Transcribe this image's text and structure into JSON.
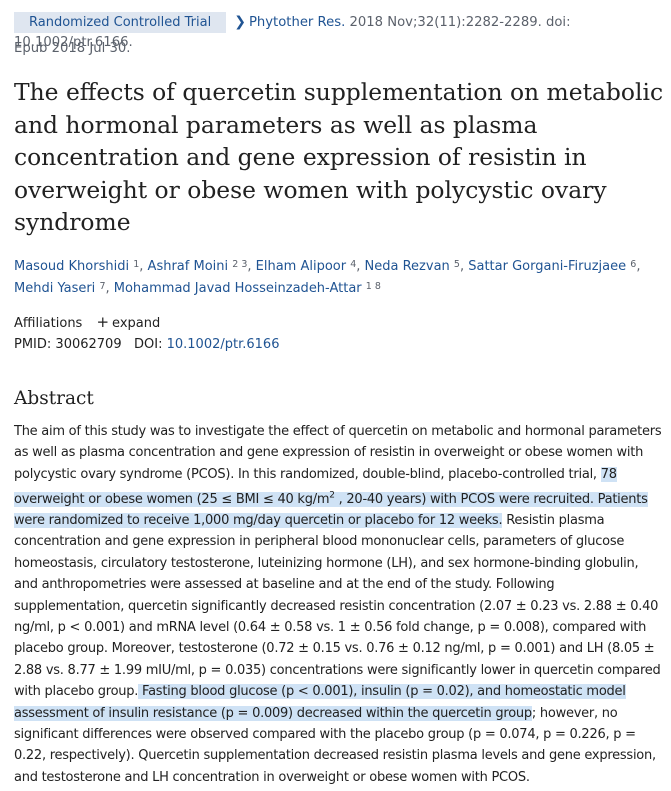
{
  "header": {
    "badge": "Randomized Controlled Trial",
    "chevron_icon": "chevron-right-icon",
    "journal": "Phytother Res.",
    "citation_rest": " 2018 Nov;32(11):2282-2289. doi: 10.1002/ptr.6166.",
    "epub": "Epub 2018 Jul 30."
  },
  "title": "The effects of quercetin supplementation on metabolic and hormonal parameters as well as plasma concentration and gene expression of resistin in overweight or obese women with polycystic ovary syndrome",
  "authors": [
    {
      "name": "Masoud Khorshidi",
      "sup": "1"
    },
    {
      "name": "Ashraf Moini",
      "sup": "2 3"
    },
    {
      "name": "Elham Alipoor",
      "sup": "4"
    },
    {
      "name": "Neda Rezvan",
      "sup": "5"
    },
    {
      "name": "Sattar Gorgani-Firuzjaee",
      "sup": "6"
    },
    {
      "name": "Mehdi Yaseri",
      "sup": "7"
    },
    {
      "name": "Mohammad Javad Hosseinzadeh-Attar",
      "sup": "1 8"
    }
  ],
  "affiliations": {
    "label": "Affiliations",
    "expand": "expand",
    "icon": "plus-icon"
  },
  "ids": {
    "pmid_label": "PMID:",
    "pmid": "30062709",
    "doi_label": "DOI:",
    "doi": "10.1002/ptr.6166"
  },
  "abstract": {
    "heading": "Abstract",
    "p1": "The aim of this study was to investigate the effect of quercetin on metabolic and hormonal parameters as well as plasma concentration and gene expression of resistin in overweight or obese women with polycystic ovary syndrome (PCOS). In this randomized, double-blind, placebo-controlled trial, ",
    "hl1_a": "78 overweight or obese women (25 ≤ BMI ≤ 40 kg/m",
    "hl1_sup": "2",
    "hl1_b": " , 20-40 years) with PCOS were recruited. Patients were randomized to receive 1,000 mg/day quercetin or placebo for 12 weeks.",
    "p2": " Resistin plasma concentration and gene expression in peripheral blood mononuclear cells, parameters of glucose homeostasis, circulatory testosterone, luteinizing hormone (LH), and sex hormone-binding globulin, and anthropometries were assessed at baseline and at the end of the study. Following supplementation, quercetin significantly decreased resistin concentration (2.07 ± 0.23 vs. 2.88 ± 0.40 ng/ml, p < 0.001) and mRNA level (0.64 ± 0.58 vs. 1 ± 0.56 fold change, p = 0.008), compared with placebo group. Moreover, testosterone (0.72 ± 0.15 vs. 0.76 ± 0.12 ng/ml, p = 0.001) and LH (8.05 ± 2.88 vs. 8.77 ± 1.99 mIU/ml, p = 0.035) concentrations were significantly lower in quercetin compared with placebo group.",
    "hl2": " Fasting blood glucose (p < 0.001), insulin (p = 0.02), and homeostatic model assessment of insulin resistance (p = 0.009) decreased within the quercetin group",
    "p3": "; however, no significant differences were observed compared with the placebo group (p = 0.074, p = 0.226, p = 0.22, respectively). Quercetin supplementation decreased resistin plasma levels and gene expression, and testosterone and LH concentration in overweight or obese women with PCOS."
  }
}
